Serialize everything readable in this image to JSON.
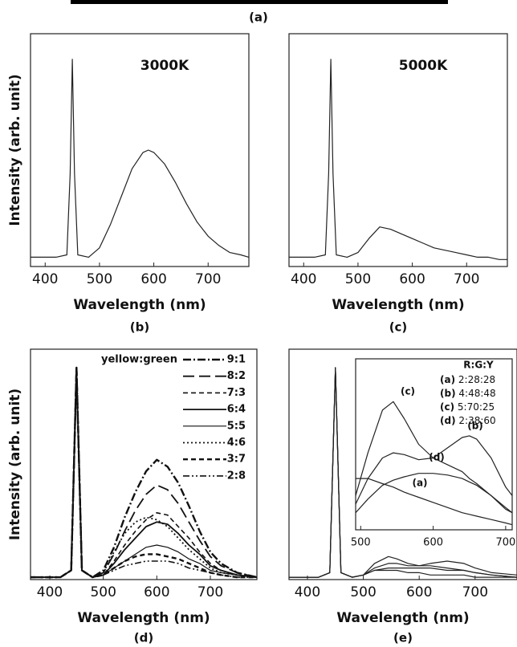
{
  "top_panel": {
    "label": "(a)"
  },
  "chart_data": [
    {
      "type": "line",
      "caption": "(b)",
      "xlabel": "Wavelength (nm)",
      "ylabel": "Intensity (arb. unit)",
      "annotation": "3000K",
      "xlim": [
        373,
        775
      ],
      "ylim": [
        0,
        1
      ],
      "xticks": [
        400,
        500,
        600,
        700
      ],
      "x": [
        373,
        400,
        420,
        440,
        446,
        450,
        454,
        460,
        480,
        500,
        520,
        540,
        560,
        580,
        590,
        600,
        620,
        640,
        660,
        680,
        700,
        720,
        740,
        760,
        775
      ],
      "series": [
        {
          "color": "#222",
          "dash": "solid",
          "values": [
            0.04,
            0.04,
            0.04,
            0.05,
            0.4,
            0.89,
            0.4,
            0.05,
            0.04,
            0.08,
            0.18,
            0.3,
            0.42,
            0.49,
            0.5,
            0.49,
            0.44,
            0.36,
            0.27,
            0.19,
            0.13,
            0.09,
            0.06,
            0.05,
            0.04
          ]
        }
      ]
    },
    {
      "type": "line",
      "caption": "(c)",
      "xlabel": "Wavelength (nm)",
      "annotation": "5000K",
      "xlim": [
        373,
        775
      ],
      "ylim": [
        0,
        1
      ],
      "xticks": [
        400,
        500,
        600,
        700
      ],
      "x": [
        373,
        400,
        420,
        440,
        446,
        450,
        454,
        460,
        480,
        500,
        520,
        540,
        560,
        580,
        590,
        600,
        620,
        640,
        660,
        680,
        700,
        720,
        740,
        760,
        775
      ],
      "series": [
        {
          "color": "#222",
          "dash": "solid",
          "values": [
            0.04,
            0.04,
            0.04,
            0.05,
            0.4,
            0.89,
            0.4,
            0.05,
            0.04,
            0.06,
            0.12,
            0.17,
            0.16,
            0.14,
            0.13,
            0.12,
            0.1,
            0.08,
            0.07,
            0.06,
            0.05,
            0.04,
            0.04,
            0.03,
            0.03
          ]
        }
      ]
    },
    {
      "type": "line",
      "caption": "(d)",
      "xlabel": "Wavelength (nm)",
      "ylabel": "Intensity (arb. unit)",
      "legend_title": "yellow:green",
      "xlim": [
        364,
        787
      ],
      "ylim": [
        0,
        1
      ],
      "xticks": [
        400,
        500,
        600,
        700
      ],
      "x": [
        364,
        420,
        440,
        450,
        460,
        480,
        500,
        520,
        540,
        560,
        580,
        600,
        620,
        640,
        660,
        680,
        700,
        720,
        750,
        787
      ],
      "series": [
        {
          "name": "9:1",
          "color": "#111",
          "dash": "dash-dot",
          "width": 2.4,
          "values": [
            0.01,
            0.01,
            0.04,
            0.92,
            0.04,
            0.01,
            0.04,
            0.14,
            0.27,
            0.38,
            0.47,
            0.52,
            0.49,
            0.42,
            0.32,
            0.21,
            0.12,
            0.07,
            0.03,
            0.01
          ]
        },
        {
          "name": "8:2",
          "color": "#111",
          "dash": "long-dash",
          "width": 1.8,
          "values": [
            0.01,
            0.01,
            0.04,
            0.92,
            0.04,
            0.01,
            0.03,
            0.11,
            0.21,
            0.3,
            0.37,
            0.41,
            0.39,
            0.33,
            0.25,
            0.17,
            0.1,
            0.06,
            0.03,
            0.01
          ]
        },
        {
          "name": "7:3",
          "color": "#111",
          "dash": "dash",
          "width": 1.6,
          "values": [
            0.01,
            0.01,
            0.04,
            0.92,
            0.04,
            0.01,
            0.02,
            0.08,
            0.15,
            0.21,
            0.26,
            0.29,
            0.28,
            0.23,
            0.18,
            0.12,
            0.07,
            0.04,
            0.02,
            0.01
          ]
        },
        {
          "name": "6:4",
          "color": "#111",
          "dash": "solid",
          "width": 1.8,
          "values": [
            0.01,
            0.01,
            0.04,
            0.92,
            0.04,
            0.01,
            0.02,
            0.07,
            0.13,
            0.18,
            0.23,
            0.25,
            0.24,
            0.2,
            0.15,
            0.11,
            0.06,
            0.04,
            0.02,
            0.01
          ]
        },
        {
          "name": "5:5",
          "color": "#111",
          "dash": "solid",
          "width": 1.2,
          "values": [
            0.01,
            0.01,
            0.04,
            0.92,
            0.04,
            0.01,
            0.02,
            0.05,
            0.08,
            0.11,
            0.14,
            0.15,
            0.14,
            0.12,
            0.09,
            0.07,
            0.04,
            0.03,
            0.02,
            0.01
          ]
        },
        {
          "name": "4:6",
          "color": "#111",
          "dash": "dot",
          "width": 1.8,
          "values": [
            0.01,
            0.01,
            0.04,
            0.92,
            0.04,
            0.01,
            0.03,
            0.12,
            0.2,
            0.25,
            0.27,
            0.26,
            0.23,
            0.18,
            0.13,
            0.09,
            0.05,
            0.03,
            0.02,
            0.01
          ]
        },
        {
          "name": "3:7",
          "color": "#111",
          "dash": "dash",
          "width": 2.4,
          "values": [
            0.01,
            0.01,
            0.04,
            0.92,
            0.04,
            0.01,
            0.02,
            0.05,
            0.08,
            0.1,
            0.11,
            0.11,
            0.1,
            0.09,
            0.07,
            0.05,
            0.03,
            0.02,
            0.01,
            0.01
          ]
        },
        {
          "name": "2:8",
          "color": "#111",
          "dash": "dash-dot-dot",
          "width": 1.6,
          "values": [
            0.01,
            0.01,
            0.04,
            0.92,
            0.04,
            0.01,
            0.02,
            0.04,
            0.06,
            0.07,
            0.08,
            0.08,
            0.08,
            0.07,
            0.05,
            0.04,
            0.03,
            0.02,
            0.01,
            0.01
          ]
        }
      ]
    },
    {
      "type": "line",
      "caption": "(e)",
      "xlabel": "Wavelength (nm)",
      "xlim": [
        367,
        775
      ],
      "ylim": [
        0,
        1
      ],
      "xticks": [
        400,
        500,
        600,
        700
      ],
      "x": [
        367,
        420,
        440,
        450,
        460,
        480,
        500,
        520,
        545,
        560,
        580,
        600,
        620,
        650,
        680,
        700,
        730,
        775
      ],
      "series": [
        {
          "color": "#222",
          "dash": "solid",
          "values": [
            0.01,
            0.01,
            0.03,
            0.92,
            0.03,
            0.01,
            0.02,
            0.07,
            0.1,
            0.09,
            0.07,
            0.06,
            0.06,
            0.05,
            0.04,
            0.03,
            0.02,
            0.01
          ]
        },
        {
          "color": "#222",
          "dash": "solid",
          "values": [
            0.01,
            0.01,
            0.03,
            0.92,
            0.03,
            0.01,
            0.02,
            0.05,
            0.07,
            0.07,
            0.06,
            0.06,
            0.07,
            0.08,
            0.07,
            0.05,
            0.03,
            0.02
          ]
        },
        {
          "color": "#222",
          "dash": "solid",
          "values": [
            0.01,
            0.01,
            0.03,
            0.92,
            0.03,
            0.01,
            0.02,
            0.04,
            0.05,
            0.05,
            0.05,
            0.05,
            0.05,
            0.04,
            0.04,
            0.03,
            0.02,
            0.01
          ]
        },
        {
          "color": "#222",
          "dash": "solid",
          "values": [
            0.01,
            0.01,
            0.03,
            0.92,
            0.03,
            0.01,
            0.02,
            0.04,
            0.04,
            0.04,
            0.03,
            0.03,
            0.02,
            0.02,
            0.02,
            0.01,
            0.01,
            0.01
          ]
        }
      ]
    },
    {
      "type": "line",
      "legend_title": "R:G:Y",
      "xlim": [
        493,
        709
      ],
      "ylim": [
        0,
        1
      ],
      "xticks": [
        500,
        600,
        700
      ],
      "x": [
        493,
        510,
        530,
        545,
        560,
        580,
        600,
        620,
        640,
        650,
        660,
        680,
        700,
        709
      ],
      "series": [
        {
          "name": "(a)",
          "ratio": "2:28:28",
          "color": "#222",
          "dash": "solid",
          "values": [
            0.3,
            0.3,
            0.27,
            0.25,
            0.22,
            0.19,
            0.16,
            0.13,
            0.1,
            0.09,
            0.08,
            0.06,
            0.04,
            0.03
          ]
        },
        {
          "name": "(b)",
          "ratio": "4:48:48",
          "color": "#222",
          "dash": "solid",
          "values": [
            0.15,
            0.3,
            0.42,
            0.45,
            0.44,
            0.41,
            0.42,
            0.48,
            0.54,
            0.55,
            0.53,
            0.42,
            0.25,
            0.2
          ]
        },
        {
          "name": "(c)",
          "ratio": "5:70:25",
          "color": "#222",
          "dash": "solid",
          "values": [
            0.2,
            0.45,
            0.7,
            0.75,
            0.65,
            0.5,
            0.42,
            0.38,
            0.34,
            0.3,
            0.27,
            0.2,
            0.12,
            0.1
          ]
        },
        {
          "name": "(d)",
          "ratio": "2:38:60",
          "color": "#222",
          "dash": "solid",
          "values": [
            0.1,
            0.18,
            0.26,
            0.29,
            0.31,
            0.33,
            0.33,
            0.32,
            0.3,
            0.28,
            0.26,
            0.2,
            0.13,
            0.1
          ]
        }
      ]
    }
  ]
}
